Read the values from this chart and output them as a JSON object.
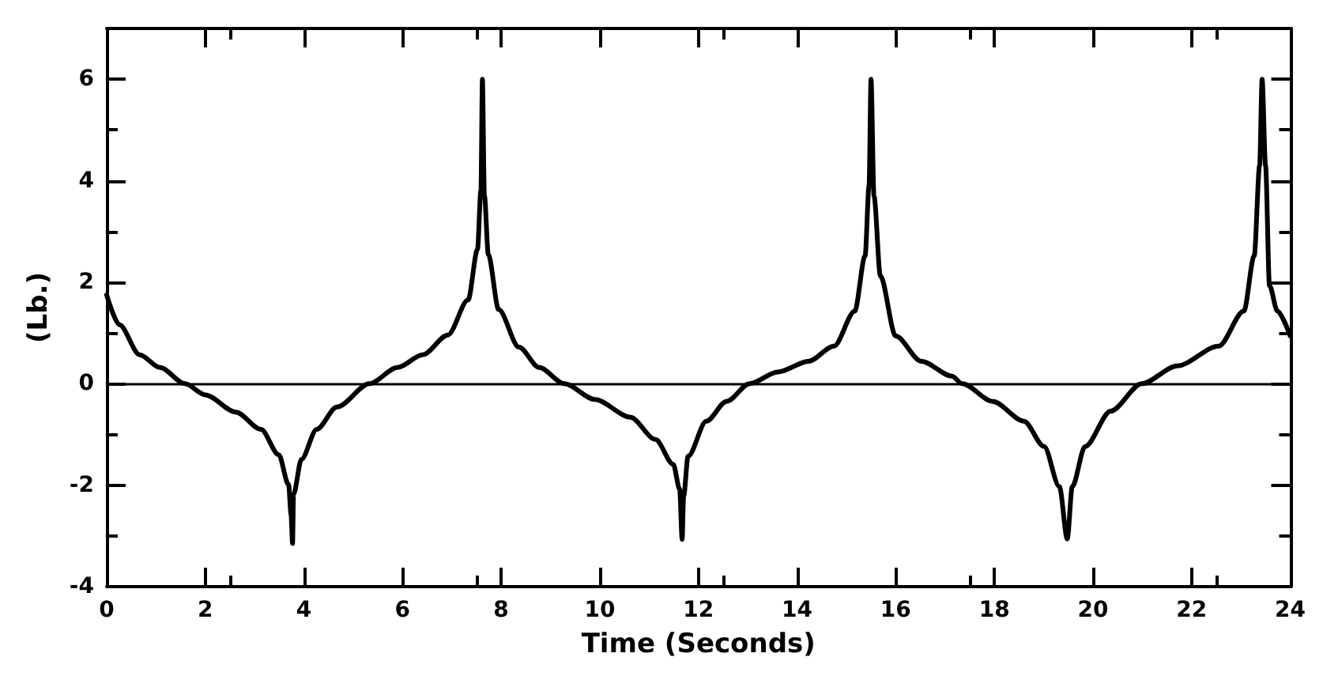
{
  "chart_data": {
    "type": "line",
    "xlabel": "Time (Seconds)",
    "ylabel": "(Lb.)",
    "xlim": [
      0,
      24
    ],
    "ylim": [
      -4,
      7
    ],
    "xticks": [
      0,
      2,
      4,
      6,
      8,
      10,
      12,
      14,
      16,
      18,
      20,
      22,
      24
    ],
    "yticks": [
      -4,
      -2,
      0,
      2,
      4,
      6
    ],
    "grid": false,
    "marker": "none",
    "line_style": "solid",
    "ref_lines": [
      {
        "axis": "y",
        "value": 0,
        "color": "#000000"
      }
    ],
    "series": [
      {
        "color": "#000000",
        "x": [
          0,
          0.26,
          0.67,
          1.08,
          1.59,
          2.0,
          2.62,
          3.13,
          3.49,
          3.69,
          3.74,
          3.77,
          3.79,
          3.95,
          4.26,
          4.67,
          5.33,
          5.9,
          6.41,
          6.92,
          7.33,
          7.52,
          7.59,
          7.62,
          7.66,
          7.74,
          7.95,
          8.36,
          8.77,
          9.28,
          9.9,
          10.62,
          11.13,
          11.49,
          11.62,
          11.67,
          11.7,
          11.79,
          12.16,
          12.57,
          13.04,
          13.61,
          14.23,
          14.75,
          15.17,
          15.38,
          15.46,
          15.5,
          15.56,
          15.69,
          16.0,
          16.52,
          17.14,
          17.35,
          17.97,
          18.6,
          19.01,
          19.32,
          19.48,
          19.58,
          19.84,
          20.36,
          20.99,
          21.71,
          22.55,
          23.06,
          23.27,
          23.38,
          23.43,
          23.5,
          23.58,
          23.74,
          24.0
        ],
        "values": [
          1.75,
          1.16,
          0.57,
          0.32,
          0,
          -0.22,
          -0.56,
          -0.9,
          -1.4,
          -1.99,
          -2.58,
          -3.15,
          -2.18,
          -1.49,
          -0.9,
          -0.46,
          0,
          0.32,
          0.57,
          0.96,
          1.65,
          2.64,
          3.82,
          6.0,
          3.72,
          2.54,
          1.46,
          0.72,
          0.32,
          0,
          -0.31,
          -0.66,
          -1.1,
          -1.59,
          -2.08,
          -3.07,
          -2.22,
          -1.43,
          -0.74,
          -0.35,
          0,
          0.23,
          0.44,
          0.74,
          1.43,
          2.52,
          3.9,
          6.0,
          3.7,
          2.12,
          0.94,
          0.44,
          0.15,
          0,
          -0.35,
          -0.74,
          -1.24,
          -2.03,
          -3.06,
          -2.03,
          -1.24,
          -0.54,
          0,
          0.35,
          0.74,
          1.43,
          2.52,
          4.3,
          6.0,
          4.3,
          1.93,
          1.43,
          0.94
        ]
      }
    ]
  }
}
